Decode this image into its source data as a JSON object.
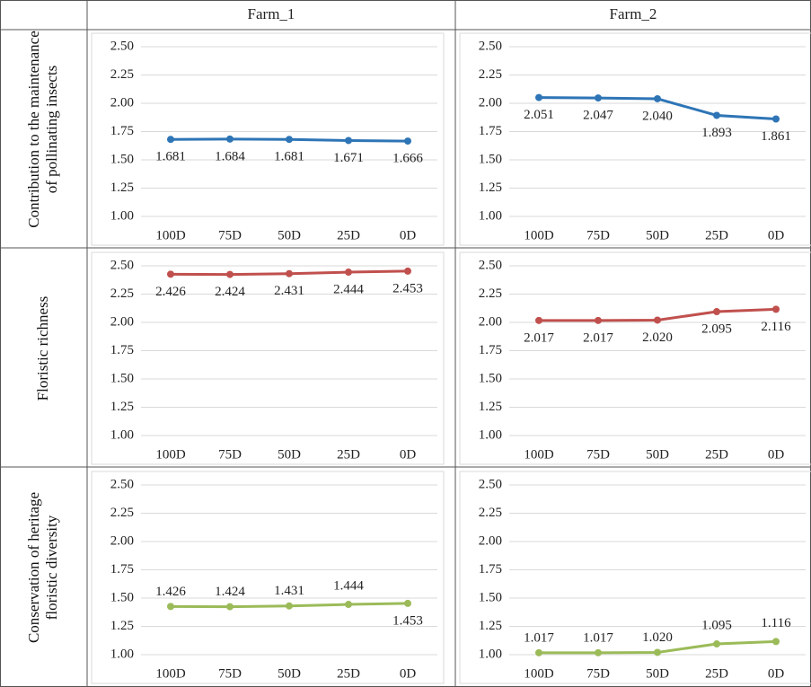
{
  "columns": [
    "Farm_1",
    "Farm_2"
  ],
  "rows": [
    "Contribution to the maintenance of pollinating insects",
    "Floristic richness",
    "Conservation of heritage floristic diversity"
  ],
  "chart_data": [
    {
      "type": "line",
      "categories": [
        "100D",
        "75D",
        "50D",
        "25D",
        "0D"
      ],
      "values": [
        1.681,
        1.684,
        1.681,
        1.671,
        1.666
      ],
      "value_labels": [
        "1.681",
        "1.684",
        "1.681",
        "1.671",
        "1.666"
      ],
      "color": "#2e75b6",
      "ylim": [
        1,
        2.5
      ],
      "yticks": [
        {
          "value": 1,
          "label": "1.00"
        },
        {
          "value": 1.25,
          "label": "1.25"
        },
        {
          "value": 1.5,
          "label": "1.50"
        },
        {
          "value": 1.75,
          "label": "1.75"
        },
        {
          "value": 2,
          "label": "2.00"
        },
        {
          "value": 2.25,
          "label": "2.25"
        },
        {
          "value": 2.5,
          "label": "2.50"
        }
      ],
      "grid": true
    },
    {
      "type": "line",
      "categories": [
        "100D",
        "75D",
        "50D",
        "25D",
        "0D"
      ],
      "values": [
        2.051,
        2.047,
        2.04,
        1.893,
        1.861
      ],
      "value_labels": [
        "2.051",
        "2.047",
        "2.040",
        "1.893",
        "1.861"
      ],
      "color": "#2e75b6",
      "ylim": [
        1,
        2.5
      ],
      "yticks": [
        {
          "value": 1,
          "label": "1.00"
        },
        {
          "value": 1.25,
          "label": "1.25"
        },
        {
          "value": 1.5,
          "label": "1.50"
        },
        {
          "value": 1.75,
          "label": "1.75"
        },
        {
          "value": 2,
          "label": "2.00"
        },
        {
          "value": 2.25,
          "label": "2.25"
        },
        {
          "value": 2.5,
          "label": "2.50"
        }
      ],
      "grid": true
    },
    {
      "type": "line",
      "categories": [
        "100D",
        "75D",
        "50D",
        "25D",
        "0D"
      ],
      "values": [
        2.426,
        2.424,
        2.431,
        2.444,
        2.453
      ],
      "value_labels": [
        "2.426",
        "2.424",
        "2.431",
        "2.444",
        "2.453"
      ],
      "color": "#c0504d",
      "ylim": [
        1,
        2.5
      ],
      "yticks": [
        {
          "value": 1,
          "label": "1.00"
        },
        {
          "value": 1.25,
          "label": "1.25"
        },
        {
          "value": 1.5,
          "label": "1.50"
        },
        {
          "value": 1.75,
          "label": "1.75"
        },
        {
          "value": 2,
          "label": "2.00"
        },
        {
          "value": 2.25,
          "label": "2.25"
        },
        {
          "value": 2.5,
          "label": "2.50"
        }
      ],
      "grid": true
    },
    {
      "type": "line",
      "categories": [
        "100D",
        "75D",
        "50D",
        "25D",
        "0D"
      ],
      "values": [
        2.017,
        2.017,
        2.02,
        2.095,
        2.116
      ],
      "value_labels": [
        "2.017",
        "2.017",
        "2.020",
        "2.095",
        "2.116"
      ],
      "color": "#c0504d",
      "ylim": [
        1,
        2.5
      ],
      "yticks": [
        {
          "value": 1,
          "label": "1.00"
        },
        {
          "value": 1.25,
          "label": "1.25"
        },
        {
          "value": 1.5,
          "label": "1.50"
        },
        {
          "value": 1.75,
          "label": "1.75"
        },
        {
          "value": 2,
          "label": "2.00"
        },
        {
          "value": 2.25,
          "label": "2.25"
        },
        {
          "value": 2.5,
          "label": "2.50"
        }
      ],
      "grid": true
    },
    {
      "type": "line",
      "categories": [
        "100D",
        "75D",
        "50D",
        "25D",
        "0D"
      ],
      "values": [
        1.426,
        1.424,
        1.431,
        1.444,
        1.453
      ],
      "value_labels": [
        "1.426",
        "1.424",
        "1.431",
        "1.444",
        "1.453"
      ],
      "color": "#9bbb59",
      "ylim": [
        1,
        2.5
      ],
      "yticks": [
        {
          "value": 1,
          "label": "1.00"
        },
        {
          "value": 1.25,
          "label": "1.25"
        },
        {
          "value": 1.5,
          "label": "1.50"
        },
        {
          "value": 1.75,
          "label": "1.75"
        },
        {
          "value": 2,
          "label": "2.00"
        },
        {
          "value": 2.25,
          "label": "2.25"
        },
        {
          "value": 2.5,
          "label": "2.50"
        }
      ],
      "grid": true
    },
    {
      "type": "line",
      "categories": [
        "100D",
        "75D",
        "50D",
        "25D",
        "0D"
      ],
      "values": [
        1.017,
        1.017,
        1.02,
        1.095,
        1.116
      ],
      "value_labels": [
        "1.017",
        "1.017",
        "1.020",
        "1.095",
        "1.116"
      ],
      "color": "#9bbb59",
      "ylim": [
        1,
        2.5
      ],
      "yticks": [
        {
          "value": 1,
          "label": "1.00"
        },
        {
          "value": 1.25,
          "label": "1.25"
        },
        {
          "value": 1.5,
          "label": "1.50"
        },
        {
          "value": 1.75,
          "label": "1.75"
        },
        {
          "value": 2,
          "label": "2.00"
        },
        {
          "value": 2.25,
          "label": "2.25"
        },
        {
          "value": 2.5,
          "label": "2.50"
        }
      ],
      "grid": true
    }
  ]
}
